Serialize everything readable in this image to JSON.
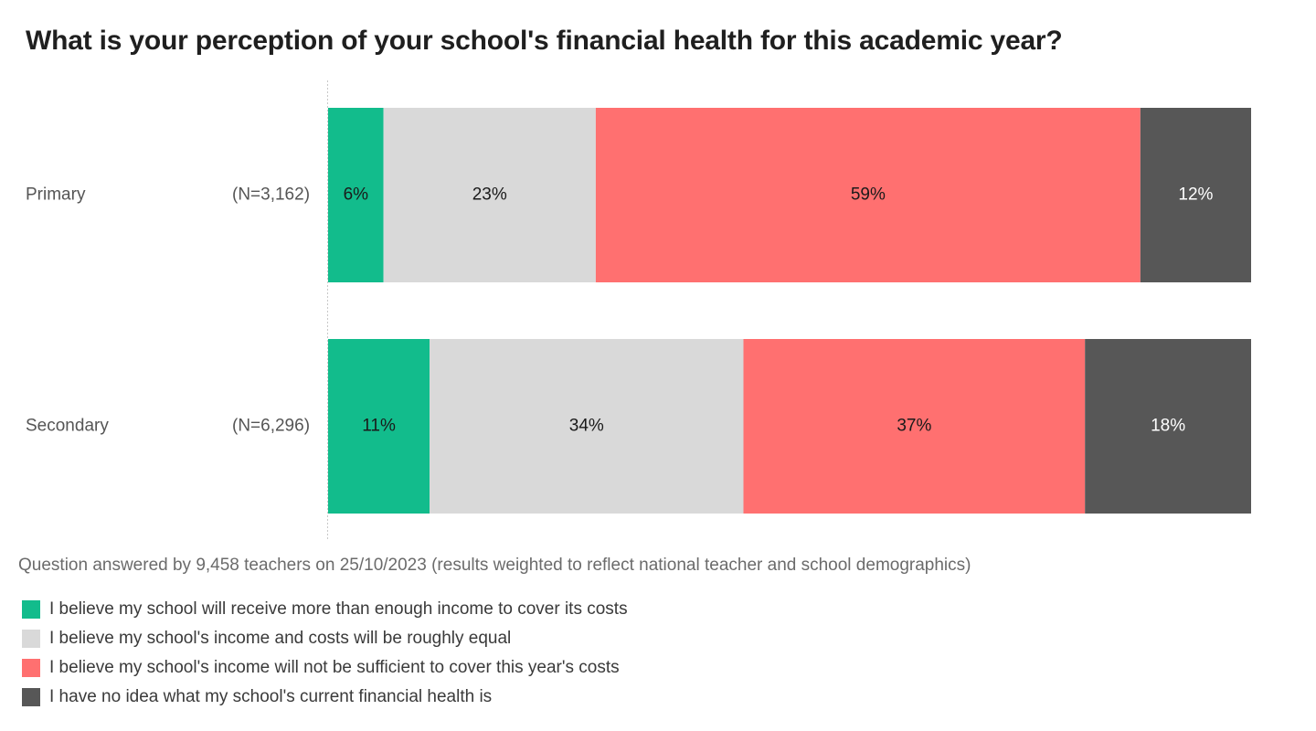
{
  "title": "What is your perception of your school's financial health for this academic year?",
  "footnote": "Question answered by 9,458 teachers on 25/10/2023 (results weighted to reflect national teacher and school demographics)",
  "colors": {
    "more_than_enough": "#12bc8c",
    "roughly_equal": "#d9d9d9",
    "not_sufficient": "#ff7070",
    "no_idea": "#575757"
  },
  "chart_data": {
    "type": "bar",
    "orientation": "horizontal",
    "stacked": true,
    "categories": [
      "Primary",
      "Secondary"
    ],
    "category_notes": [
      "(N=3,162)",
      "(N=6,296)"
    ],
    "xlim": [
      0,
      100
    ],
    "series": [
      {
        "name": "I believe my school will receive more than enough income to cover its costs",
        "values": [
          6,
          11
        ],
        "labels": [
          "6%",
          "11%"
        ],
        "color": "#12bc8c",
        "label_color": "#1a1a1a"
      },
      {
        "name": "I believe my school's income and costs will be roughly equal",
        "values": [
          23,
          34
        ],
        "labels": [
          "23%",
          "34%"
        ],
        "color": "#d9d9d9",
        "label_color": "#1a1a1a"
      },
      {
        "name": "I believe my school's income will not be sufficient to cover this year's costs",
        "values": [
          59,
          37
        ],
        "labels": [
          "59%",
          "37%"
        ],
        "color": "#ff7070",
        "label_color": "#1a1a1a"
      },
      {
        "name": "I have no idea what my school's current financial health is",
        "values": [
          12,
          18
        ],
        "labels": [
          "12%",
          "18%"
        ],
        "color": "#575757",
        "label_color": "#ffffff"
      }
    ],
    "legend_position": "bottom-left",
    "grid": false
  }
}
